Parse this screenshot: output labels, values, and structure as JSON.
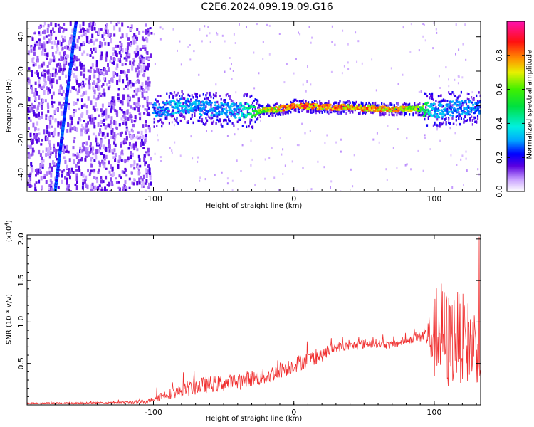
{
  "title": "C2E6.2024.099.19.09.G16",
  "chart_data": [
    {
      "type": "heatmap",
      "xlabel": "Height of straight line (km)",
      "ylabel": "Frequency (Hz)",
      "xlim": [
        -190,
        133
      ],
      "ylim": [
        -50,
        49
      ],
      "x_ticks": [
        -100,
        0,
        100
      ],
      "x_tick_labels": [
        "-100",
        "0",
        "100"
      ],
      "y_ticks": [
        -40,
        -20,
        0,
        20,
        40
      ],
      "y_tick_labels": [
        "-40",
        "-20",
        "0",
        "20",
        "40"
      ],
      "colorbar": {
        "label": "Normalized spectral amplitude",
        "range": [
          0,
          1
        ],
        "ticks": [
          0.0,
          0.2,
          0.4,
          0.6,
          0.8
        ],
        "tick_labels": [
          "0.0",
          "0.2",
          "0.4",
          "0.6",
          "0.8"
        ]
      },
      "features": [
        {
          "kind": "diagonal-streak",
          "from": [
            -170,
            -50
          ],
          "to": [
            -155,
            49
          ],
          "amplitude": 0.2
        },
        {
          "kind": "noise-field",
          "x_range": [
            -190,
            -102
          ],
          "freq_range": [
            -50,
            49
          ],
          "amplitude": 0.12
        },
        {
          "kind": "signal-band",
          "x": [
            -100,
            -80,
            -60,
            -40,
            -30,
            -20,
            -10,
            0,
            20,
            40,
            60,
            80,
            92,
            100,
            120,
            133
          ],
          "freq": [
            -3,
            0,
            -2,
            -3,
            -3,
            -3,
            -2,
            0,
            -1,
            -1,
            -2,
            -2,
            -2,
            -3,
            -1,
            -2
          ],
          "amplitude": [
            0.3,
            0.35,
            0.32,
            0.33,
            0.5,
            0.72,
            0.8,
            0.85,
            0.85,
            0.82,
            0.8,
            0.78,
            0.6,
            0.34,
            0.3,
            0.32
          ]
        }
      ]
    },
    {
      "type": "line",
      "xlabel": "Height of straight line (km)",
      "ylabel": "SNR (10 * v/v)",
      "y_multiplier": "(x10",
      "y_multiplier_exp": "4",
      "y_multiplier_close": ")",
      "xlim": [
        -190,
        133
      ],
      "ylim": [
        0,
        2.05
      ],
      "x_ticks": [
        -100,
        0,
        100
      ],
      "x_tick_labels": [
        "-100",
        "0",
        "100"
      ],
      "y_ticks": [
        0.5,
        1.0,
        1.5,
        2.0
      ],
      "y_tick_labels": [
        "0.5",
        "1.0",
        "1.5",
        "2.0"
      ],
      "series": [
        {
          "color": "#f03030",
          "x": [
            -190,
            -160,
            -130,
            -105,
            -100,
            -90,
            -80,
            -70,
            -60,
            -50,
            -40,
            -30,
            -20,
            -10,
            0,
            10,
            20,
            30,
            40,
            50,
            60,
            70,
            80,
            90,
            95,
            100,
            105,
            110,
            115,
            120,
            125,
            133
          ],
          "y": [
            0.02,
            0.02,
            0.03,
            0.04,
            0.08,
            0.13,
            0.17,
            0.22,
            0.25,
            0.26,
            0.28,
            0.32,
            0.34,
            0.42,
            0.48,
            0.55,
            0.6,
            0.7,
            0.7,
            0.74,
            0.74,
            0.72,
            0.78,
            0.82,
            0.85,
            0.8,
            0.9,
            0.75,
            0.85,
            0.8,
            0.75,
            0.7
          ],
          "spread": [
            0.01,
            0.01,
            0.01,
            0.02,
            0.05,
            0.06,
            0.08,
            0.1,
            0.1,
            0.1,
            0.1,
            0.1,
            0.1,
            0.1,
            0.1,
            0.1,
            0.08,
            0.06,
            0.06,
            0.06,
            0.05,
            0.05,
            0.05,
            0.06,
            0.2,
            0.5,
            0.6,
            0.6,
            0.55,
            0.55,
            0.5,
            0.45
          ]
        }
      ]
    }
  ]
}
